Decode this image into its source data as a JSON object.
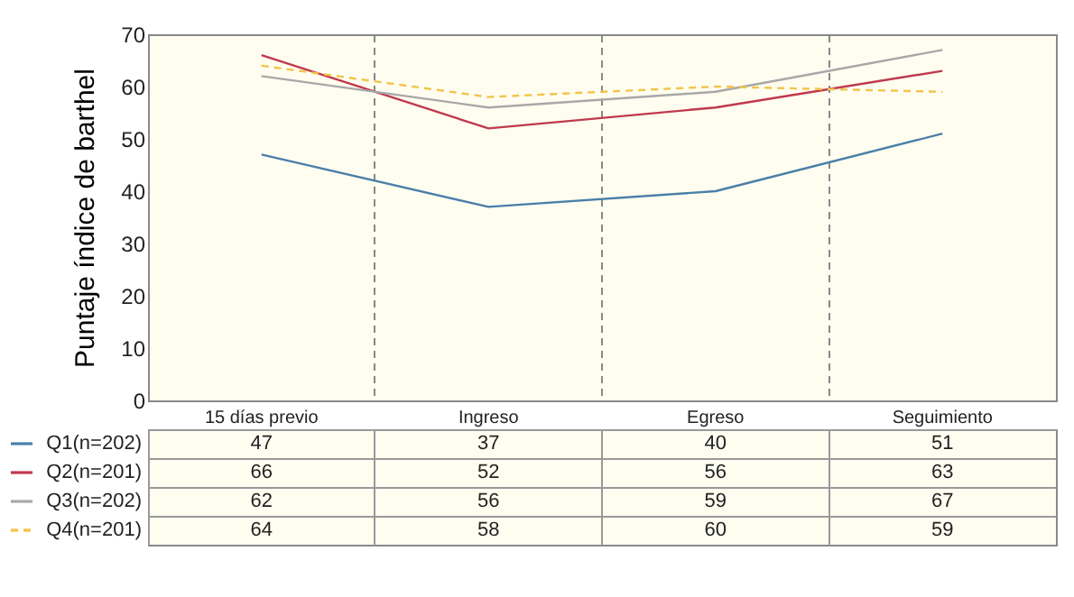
{
  "chart_data": {
    "type": "line",
    "ylabel": "Puntaje índice de barthel",
    "categories": [
      "15 días previo",
      "Ingreso",
      "Egreso",
      "Seguimiento"
    ],
    "series": [
      {
        "name": "Q1(n=202)",
        "color": "#4a7fa8",
        "values": [
          47,
          37,
          40,
          51
        ]
      },
      {
        "name": "Q2(n=201)",
        "color": "#c0394d",
        "values": [
          66,
          52,
          56,
          63
        ]
      },
      {
        "name": "Q3(n=202)",
        "color": "#a8a8a8",
        "values": [
          62,
          56,
          59,
          67
        ]
      },
      {
        "name": "Q4(n=201)",
        "color": "#f2c447",
        "values": [
          64,
          58,
          60,
          59
        ],
        "line_style": "dashed"
      }
    ],
    "ylim": [
      0,
      70
    ],
    "yticks": [
      0,
      10,
      20,
      30,
      40,
      50,
      60,
      70
    ],
    "grid": "x",
    "legend": "bottom",
    "data_labels": true,
    "marker": "none"
  }
}
